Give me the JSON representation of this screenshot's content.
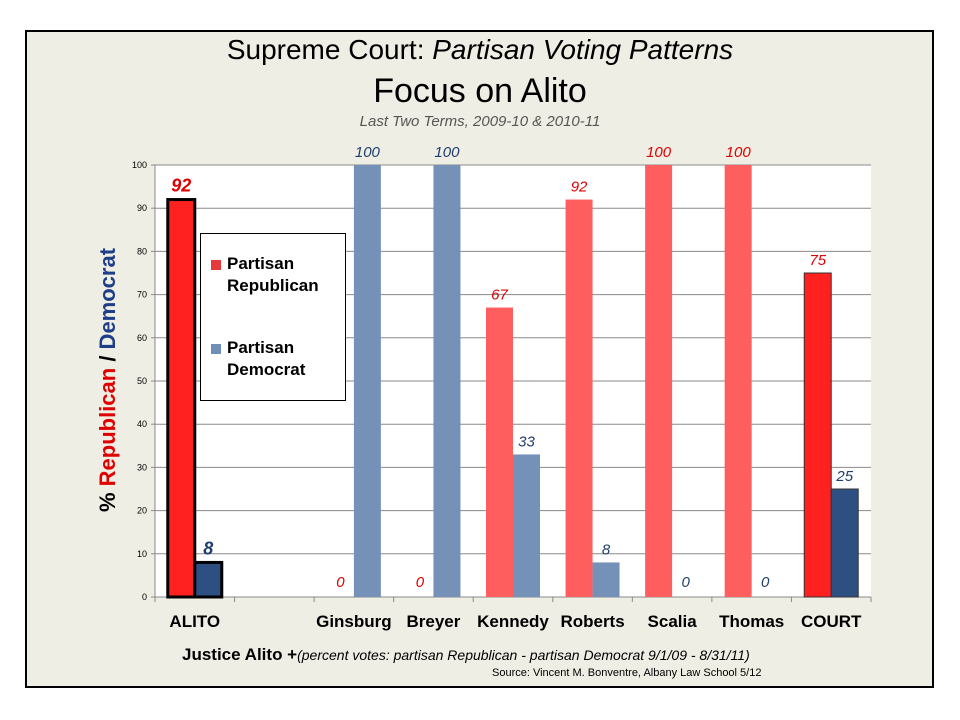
{
  "title_part1": "Supreme Court: ",
  "title_part2": "Partisan Voting Patterns",
  "subtitle": "Focus on Alito",
  "subtitle2": "Last Two Terms, 2009-10 & 2010-11",
  "ylabel_parts": [
    "% ",
    "Republican",
    " / ",
    "Democrat"
  ],
  "xtitle_bold": "Justice Alito +",
  "xtitle_rest": "(percent votes: partisan Republican - partisan Democrat 9/1/09 - 8/31/11)",
  "source": "Source: Vincent M. Bonventre, Albany Law School 5/12",
  "legend": [
    {
      "line1": "Partisan",
      "line2": "Republican",
      "color": "#e8393a"
    },
    {
      "line1": "Partisan",
      "line2": "Democrat",
      "color": "#6f8fb9"
    }
  ],
  "colors": {
    "republican": "#ff5e5e",
    "democrat": "#7691b8",
    "rep_dark": "#ff2020",
    "dem_dark": "#2d4f82",
    "label_rep": "#e00000",
    "label_dem": "#1f3e6e"
  },
  "chart_data": {
    "type": "bar",
    "categories": [
      "ALITO",
      "",
      "Ginsburg",
      "Breyer",
      "Kennedy",
      "Roberts",
      "Scalia",
      "Thomas",
      "COURT"
    ],
    "series": [
      {
        "name": "Partisan Republican",
        "values": [
          92,
          null,
          0,
          0,
          67,
          92,
          100,
          100,
          75
        ]
      },
      {
        "name": "Partisan Democrat",
        "values": [
          8,
          null,
          100,
          100,
          33,
          8,
          0,
          0,
          25
        ]
      }
    ],
    "ylim": [
      0,
      100
    ],
    "yticks": [
      0,
      10,
      20,
      30,
      40,
      50,
      60,
      70,
      80,
      90,
      100
    ],
    "grid": true
  }
}
